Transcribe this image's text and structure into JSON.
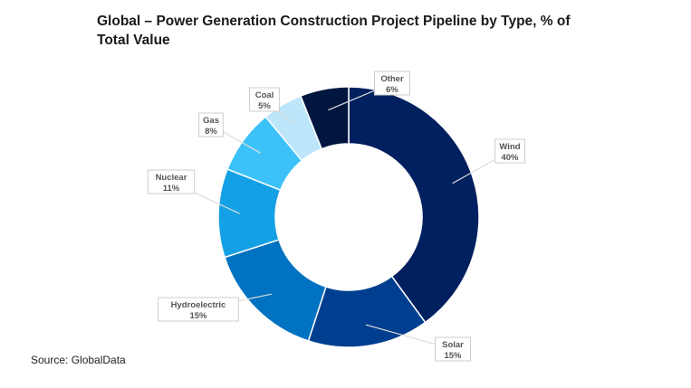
{
  "chart_data": {
    "type": "donut",
    "title": "Global – Power Generation Construction Project Pipeline by Type, % of Total Value",
    "unit": "%",
    "categories": [
      "Wind",
      "Solar",
      "Hydroelectric",
      "Nuclear",
      "Gas",
      "Coal",
      "Other"
    ],
    "values": [
      40,
      15,
      15,
      11,
      8,
      5,
      6
    ],
    "data_labels": [
      "40%",
      "15%",
      "15%",
      "11%",
      "8%",
      "5%",
      "6%"
    ],
    "colors": [
      "#002060",
      "#003f8f",
      "#0072c2",
      "#14a0e4",
      "#3cc2f8",
      "#bde6fb",
      "#00163f"
    ],
    "legend": "none",
    "source": "Source: GlobalData"
  }
}
